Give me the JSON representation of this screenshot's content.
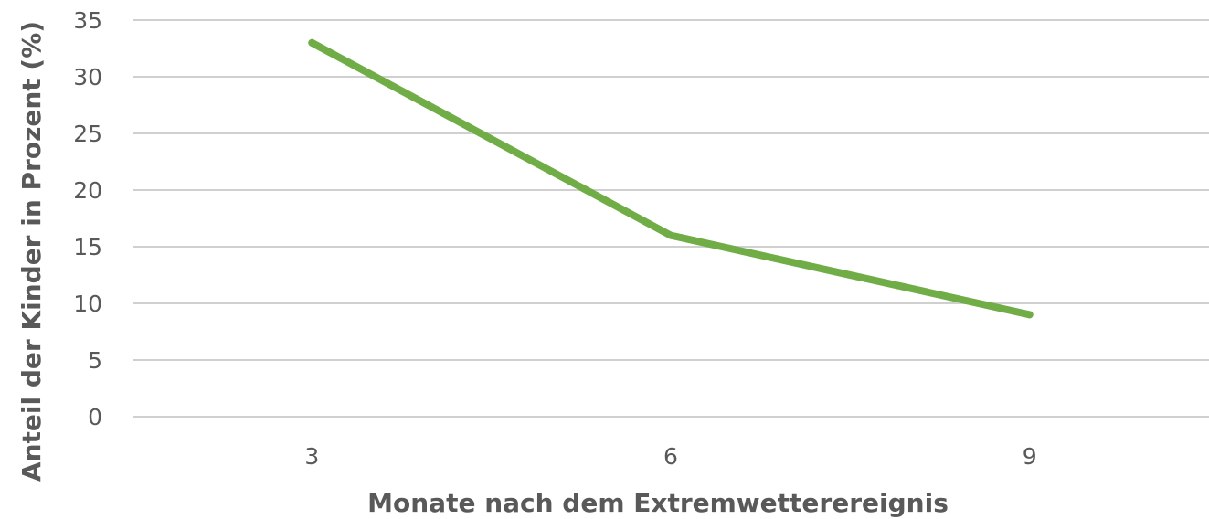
{
  "chart_data": {
    "type": "line",
    "title": "",
    "xlabel": "Monate nach dem Extremwetterereignis",
    "ylabel": "Anteil der Kinder in Prozent (%)",
    "categories": [
      "3",
      "6",
      "9"
    ],
    "series": [
      {
        "values": [
          33,
          16,
          9
        ]
      }
    ],
    "ylim": [
      0,
      35
    ],
    "yticks": [
      "0",
      "5",
      "10",
      "15",
      "20",
      "25",
      "30",
      "35"
    ],
    "grid": true,
    "legend": "none",
    "colors": {
      "line": "#70AD47",
      "grid": "#D0D0D0",
      "text": "#595959"
    }
  }
}
